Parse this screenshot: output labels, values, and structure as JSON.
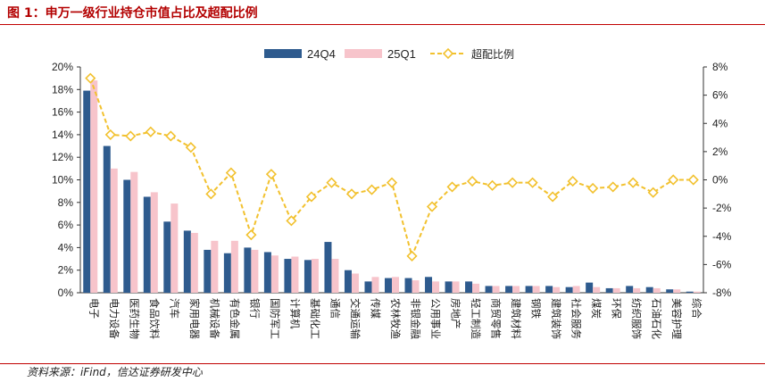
{
  "header": {
    "title": "图 1：申万一级行业持仓市值占比及超配比例"
  },
  "footer": {
    "source": "资料来源：iFind，信达证券研发中心"
  },
  "colors": {
    "series_24Q4": "#2e5b8e",
    "series_25Q1": "#f7c4cb",
    "line_ratio": "#f2c12e",
    "title_red": "#b30000"
  },
  "chart_data": {
    "type": "bar",
    "categories": [
      "电子",
      "电力设备",
      "医药生物",
      "食品饮料",
      "汽车",
      "家用电器",
      "机械设备",
      "有色金属",
      "银行",
      "国防军工",
      "计算机",
      "基础化工",
      "通信",
      "交通运输",
      "传媒",
      "农林牧渔",
      "非银金融",
      "公用事业",
      "房地产",
      "轻工制造",
      "商贸零售",
      "建筑材料",
      "钢铁",
      "建筑装饰",
      "社会服务",
      "煤炭",
      "环保",
      "纺织服饰",
      "石油石化",
      "美容护理",
      "综合"
    ],
    "series": [
      {
        "name": "24Q4",
        "axis": "left",
        "kind": "bar",
        "values": [
          17.9,
          13.0,
          10.0,
          8.5,
          6.3,
          5.5,
          3.8,
          3.5,
          4.0,
          3.6,
          3.0,
          2.9,
          4.5,
          2.0,
          1.0,
          1.3,
          1.3,
          1.4,
          1.0,
          1.0,
          0.6,
          0.6,
          0.6,
          0.6,
          0.5,
          0.9,
          0.4,
          0.6,
          0.5,
          0.3,
          0.1
        ]
      },
      {
        "name": "25Q1",
        "axis": "left",
        "kind": "bar",
        "values": [
          18.8,
          11.0,
          10.7,
          8.9,
          7.9,
          5.3,
          4.6,
          4.6,
          3.8,
          3.3,
          3.2,
          3.0,
          3.0,
          1.7,
          1.4,
          1.4,
          1.1,
          1.0,
          1.0,
          0.8,
          0.6,
          0.6,
          0.6,
          0.5,
          0.6,
          0.5,
          0.4,
          0.4,
          0.4,
          0.3,
          0.1
        ]
      },
      {
        "name": "超配比例",
        "axis": "right",
        "kind": "line",
        "values": [
          7.2,
          3.2,
          3.1,
          3.4,
          3.1,
          2.3,
          -1.0,
          0.5,
          -3.9,
          0.4,
          -2.9,
          -1.2,
          -0.2,
          -1.0,
          -0.7,
          -0.2,
          -5.4,
          -1.9,
          -0.5,
          -0.1,
          -0.4,
          -0.2,
          -0.2,
          -1.2,
          -0.1,
          -0.6,
          -0.5,
          -0.2,
          -0.9,
          0.0,
          0.0
        ]
      }
    ],
    "left_axis": {
      "min": 0,
      "max": 20,
      "step": 2,
      "unit": "%"
    },
    "right_axis": {
      "min": -8,
      "max": 8,
      "step": 2,
      "unit": "%"
    },
    "legend_position": "top-center",
    "grid": false
  }
}
